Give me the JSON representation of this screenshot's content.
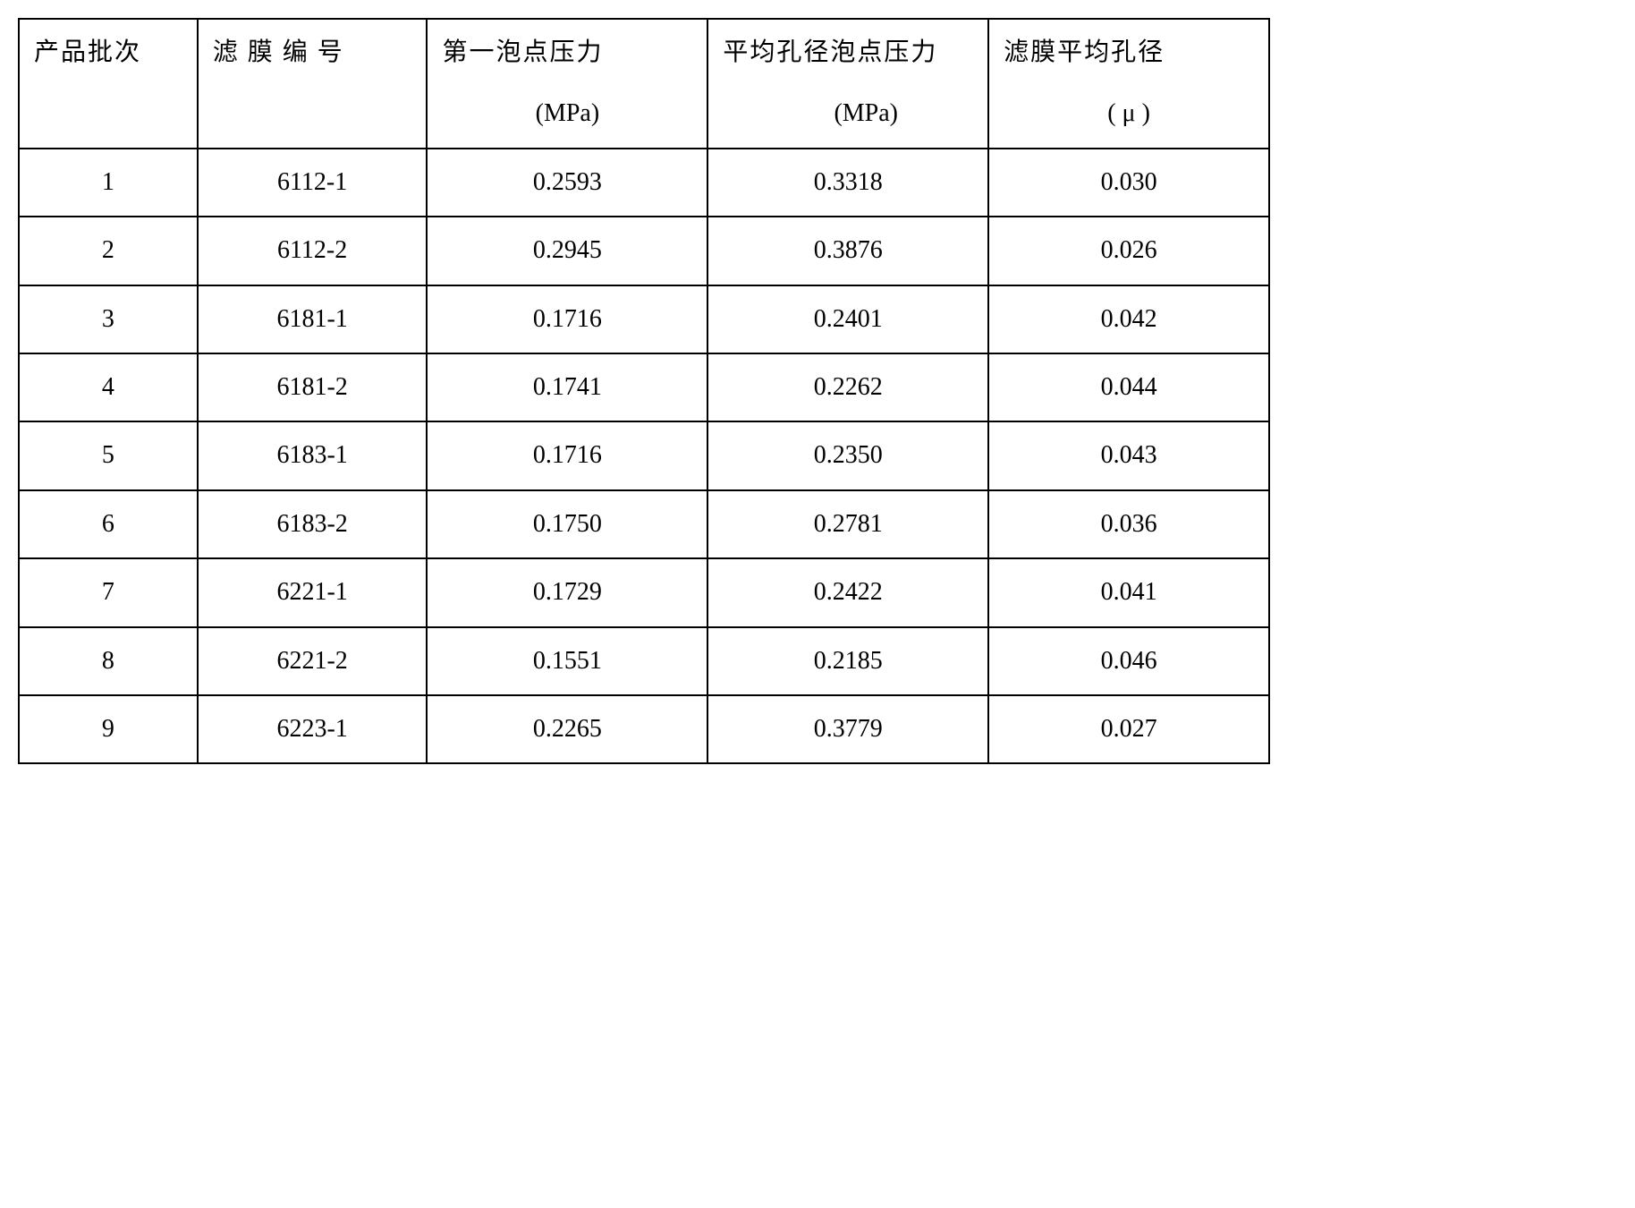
{
  "table": {
    "columns": [
      {
        "main": "产品批次",
        "sub": ""
      },
      {
        "main": "滤 膜 编 号",
        "sub": ""
      },
      {
        "main": "第一泡点压力",
        "sub": "(MPa)"
      },
      {
        "main": "平均孔径泡点压力",
        "sub": "(MPa)"
      },
      {
        "main": "滤膜平均孔径",
        "sub": "( μ )"
      }
    ],
    "rows": [
      [
        "1",
        "6112-1",
        "0.2593",
        "0.3318",
        "0.030"
      ],
      [
        "2",
        "6112-2",
        "0.2945",
        "0.3876",
        "0.026"
      ],
      [
        "3",
        "6181-1",
        "0.1716",
        "0.2401",
        "0.042"
      ],
      [
        "4",
        "6181-2",
        "0.1741",
        "0.2262",
        "0.044"
      ],
      [
        "5",
        "6183-1",
        "0.1716",
        "0.2350",
        "0.043"
      ],
      [
        "6",
        "6183-2",
        "0.1750",
        "0.2781",
        "0.036"
      ],
      [
        "7",
        "6221-1",
        "0.1729",
        "0.2422",
        "0.041"
      ],
      [
        "8",
        "6221-2",
        "0.1551",
        "0.2185",
        "0.046"
      ],
      [
        "9",
        "6223-1",
        "0.2265",
        "0.3779",
        "0.027"
      ]
    ],
    "styling": {
      "border_color": "#000000",
      "border_width": 2,
      "background_color": "#ffffff",
      "text_color": "#000000",
      "font_size_pt": 28,
      "header_row_height_ratio": 3.0,
      "data_row_height_ratio": 1.0,
      "header_text_align": "left",
      "data_text_align": "center",
      "column_widths_pct": [
        14,
        18,
        22,
        22,
        22
      ]
    }
  }
}
